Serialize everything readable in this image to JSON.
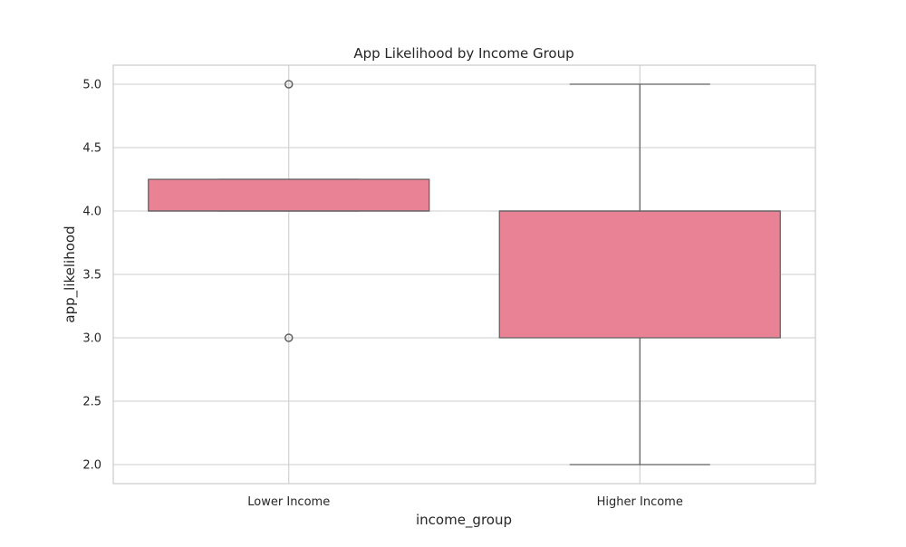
{
  "chart_data": {
    "type": "box",
    "title": "App Likelihood by Income Group",
    "xlabel": "income_group",
    "ylabel": "app_likelihood",
    "categories": [
      "Lower Income",
      "Higher Income"
    ],
    "ylim": [
      1.85,
      5.15
    ],
    "yticks": [
      "2.0",
      "2.5",
      "3.0",
      "3.5",
      "4.0",
      "4.5",
      "5.0"
    ],
    "grid": true,
    "box_color": "#e88294",
    "line_color": "#616161",
    "grid_color": "#cccccc",
    "boxes": [
      {
        "category": "Lower Income",
        "whisker_low": 4.0,
        "q1": 4.0,
        "median": 4.0,
        "q3": 4.25,
        "whisker_high": 4.25,
        "outliers": [
          5.0,
          3.0
        ]
      },
      {
        "category": "Higher Income",
        "whisker_low": 2.0,
        "q1": 3.0,
        "median": 4.0,
        "q3": 4.0,
        "whisker_high": 5.0,
        "outliers": []
      }
    ]
  }
}
